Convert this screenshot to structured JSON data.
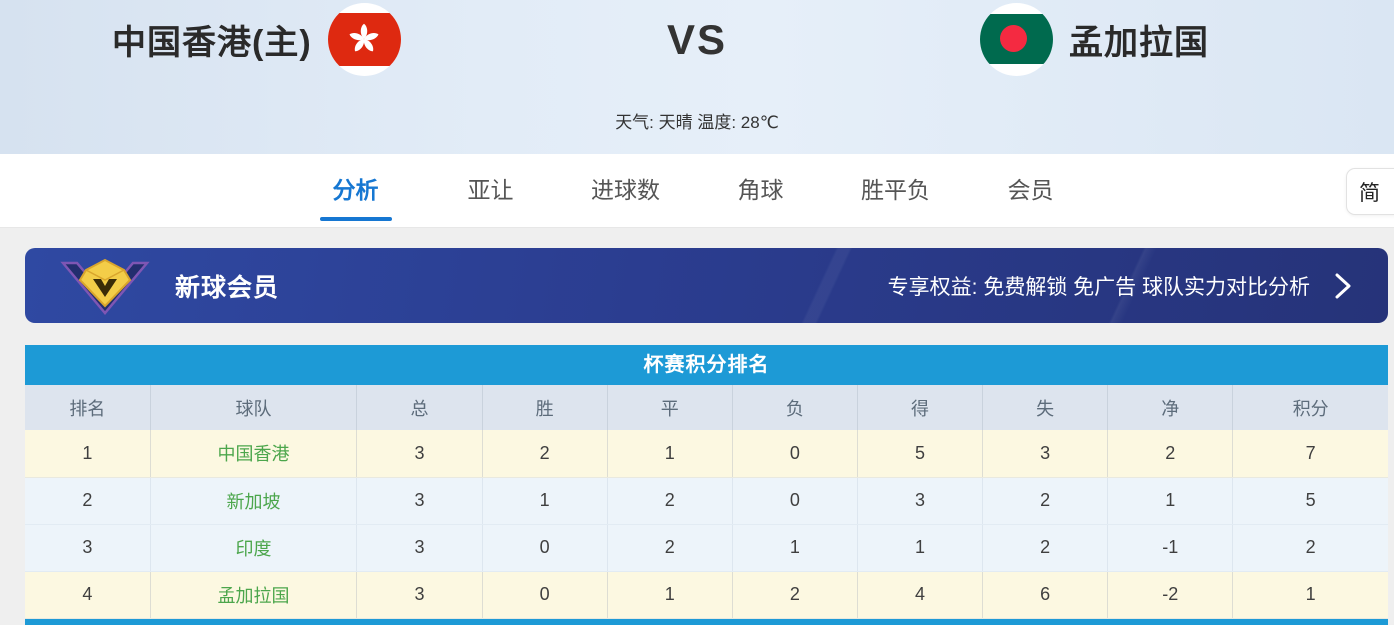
{
  "header": {
    "home_team": "中国香港(主)",
    "away_team": "孟加拉国",
    "vs": "VS",
    "weather": "天气: 天晴 温度: 28℃",
    "home_flag_icon": "hong-kong-flag-icon",
    "away_flag_icon": "bangladesh-flag-icon"
  },
  "tabs": [
    {
      "name": "analysis",
      "label": "分析",
      "active": true
    },
    {
      "name": "asian-handicap",
      "label": "亚让",
      "active": false
    },
    {
      "name": "goals",
      "label": "进球数",
      "active": false
    },
    {
      "name": "corners",
      "label": "角球",
      "active": false
    },
    {
      "name": "win-draw-lose",
      "label": "胜平负",
      "active": false
    },
    {
      "name": "membership",
      "label": "会员",
      "active": false
    }
  ],
  "lang_button": "简",
  "vip_banner": {
    "icon": "diamond-vip-icon",
    "title": "新球会员",
    "benefits": "专享权益: 免费解锁 免广告 球队实力对比分析",
    "arrow_icon": "chevron-right-icon"
  },
  "standings": {
    "title": "杯赛积分排名",
    "columns": [
      "排名",
      "球队",
      "总",
      "胜",
      "平",
      "负",
      "得",
      "失",
      "净",
      "积分"
    ],
    "rows": [
      {
        "rank": "1",
        "team": "中国香港",
        "stats": [
          "3",
          "2",
          "1",
          "0",
          "5",
          "3",
          "2",
          "7"
        ],
        "highlighted": true
      },
      {
        "rank": "2",
        "team": "新加坡",
        "stats": [
          "3",
          "1",
          "2",
          "0",
          "3",
          "2",
          "1",
          "5"
        ],
        "highlighted": false
      },
      {
        "rank": "3",
        "team": "印度",
        "stats": [
          "3",
          "0",
          "2",
          "1",
          "1",
          "2",
          "-1",
          "2"
        ],
        "highlighted": false
      },
      {
        "rank": "4",
        "team": "孟加拉国",
        "stats": [
          "3",
          "0",
          "1",
          "2",
          "4",
          "6",
          "-2",
          "1"
        ],
        "highlighted": true
      }
    ]
  },
  "colors": {
    "accent_blue": "#1677d2",
    "table_header_blue": "#1d9ad6",
    "banner_blue": "#2b3d90",
    "highlight_row_yellow": "#fcf8e1",
    "row_blue": "#edf4fa",
    "team_link_green": "#4ca64c",
    "hk_flag_red": "#de2910",
    "bd_flag_green": "#006a4e",
    "bd_flag_red": "#f42a41"
  }
}
